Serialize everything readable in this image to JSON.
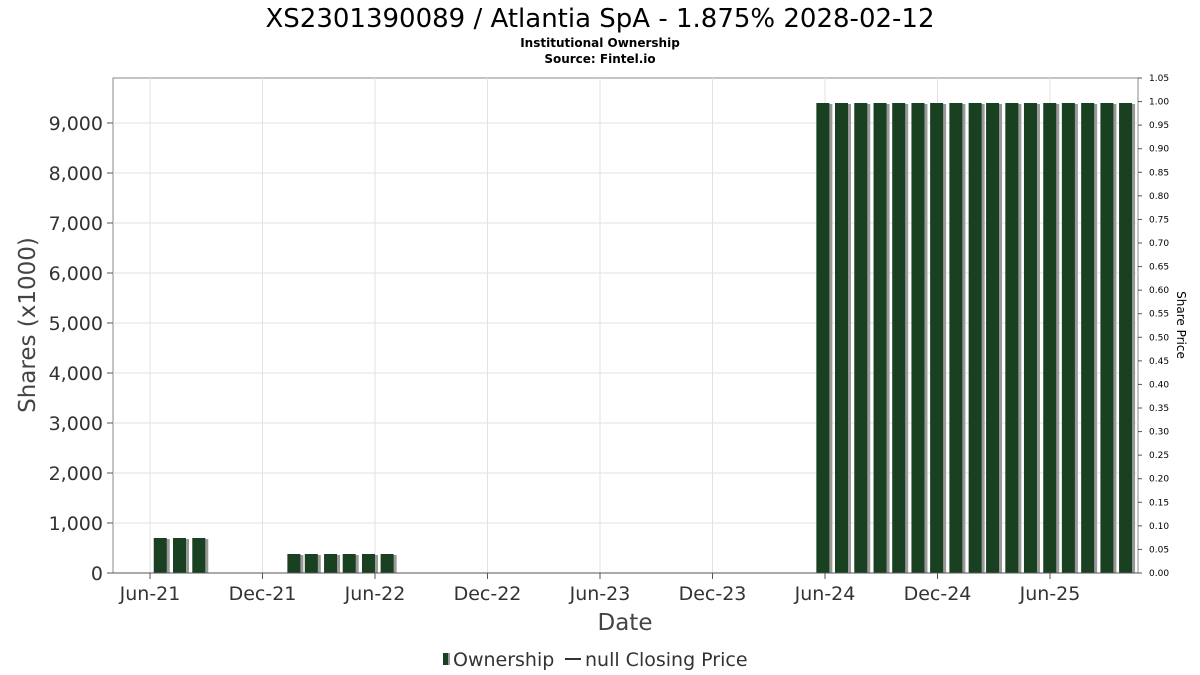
{
  "chart_data": {
    "type": "bar",
    "title": "XS2301390089 / Atlantia SpA - 1.875% 2028-02-12",
    "subtitle": "Institutional Ownership",
    "source": "Source: Fintel.io",
    "xlabel": "Date",
    "ylabel": "Shares (x1000)",
    "y2label": "Share Price",
    "x_ticks": [
      "Jun-21",
      "Dec-21",
      "Jun-22",
      "Dec-22",
      "Jun-23",
      "Dec-23",
      "Jun-24",
      "Dec-24",
      "Jun-25"
    ],
    "y_ticks": [
      "0",
      "1,000",
      "2,000",
      "3,000",
      "4,000",
      "5,000",
      "6,000",
      "7,000",
      "8,000",
      "9,000"
    ],
    "y2_ticks": [
      "0.00",
      "0.05",
      "0.10",
      "0.15",
      "0.20",
      "0.25",
      "0.30",
      "0.35",
      "0.40",
      "0.45",
      "0.50",
      "0.55",
      "0.60",
      "0.65",
      "0.70",
      "0.75",
      "0.80",
      "0.85",
      "0.90",
      "0.95",
      "1.00",
      "1.05"
    ],
    "ylim": [
      0,
      9900
    ],
    "y2lim": [
      0,
      1.05
    ],
    "xlim": [
      "2021-04-15",
      "2025-10-20"
    ],
    "grid": true,
    "legend_position": "bottom-center",
    "series": [
      {
        "name": "Ownership",
        "color": "#1a4022",
        "x": [
          "2021-06-30",
          "2021-07-31",
          "2021-08-31",
          "2022-01-31",
          "2022-02-28",
          "2022-03-31",
          "2022-04-30",
          "2022-05-31",
          "2022-06-30",
          "2024-05-31",
          "2024-06-30",
          "2024-07-31",
          "2024-08-31",
          "2024-09-30",
          "2024-10-31",
          "2024-11-30",
          "2024-12-31",
          "2025-01-31",
          "2025-02-28",
          "2025-03-31",
          "2025-04-30",
          "2025-05-31",
          "2025-06-30",
          "2025-07-31",
          "2025-08-31",
          "2025-09-30"
        ],
        "values": [
          700,
          700,
          700,
          380,
          380,
          380,
          380,
          380,
          380,
          9400,
          9400,
          9400,
          9400,
          9400,
          9400,
          9400,
          9400,
          9400,
          9400,
          9400,
          9400,
          9400,
          9400,
          9400,
          9400,
          9400
        ]
      },
      {
        "name": "null Closing Price",
        "color": "#333333",
        "x": [],
        "values": []
      }
    ]
  }
}
